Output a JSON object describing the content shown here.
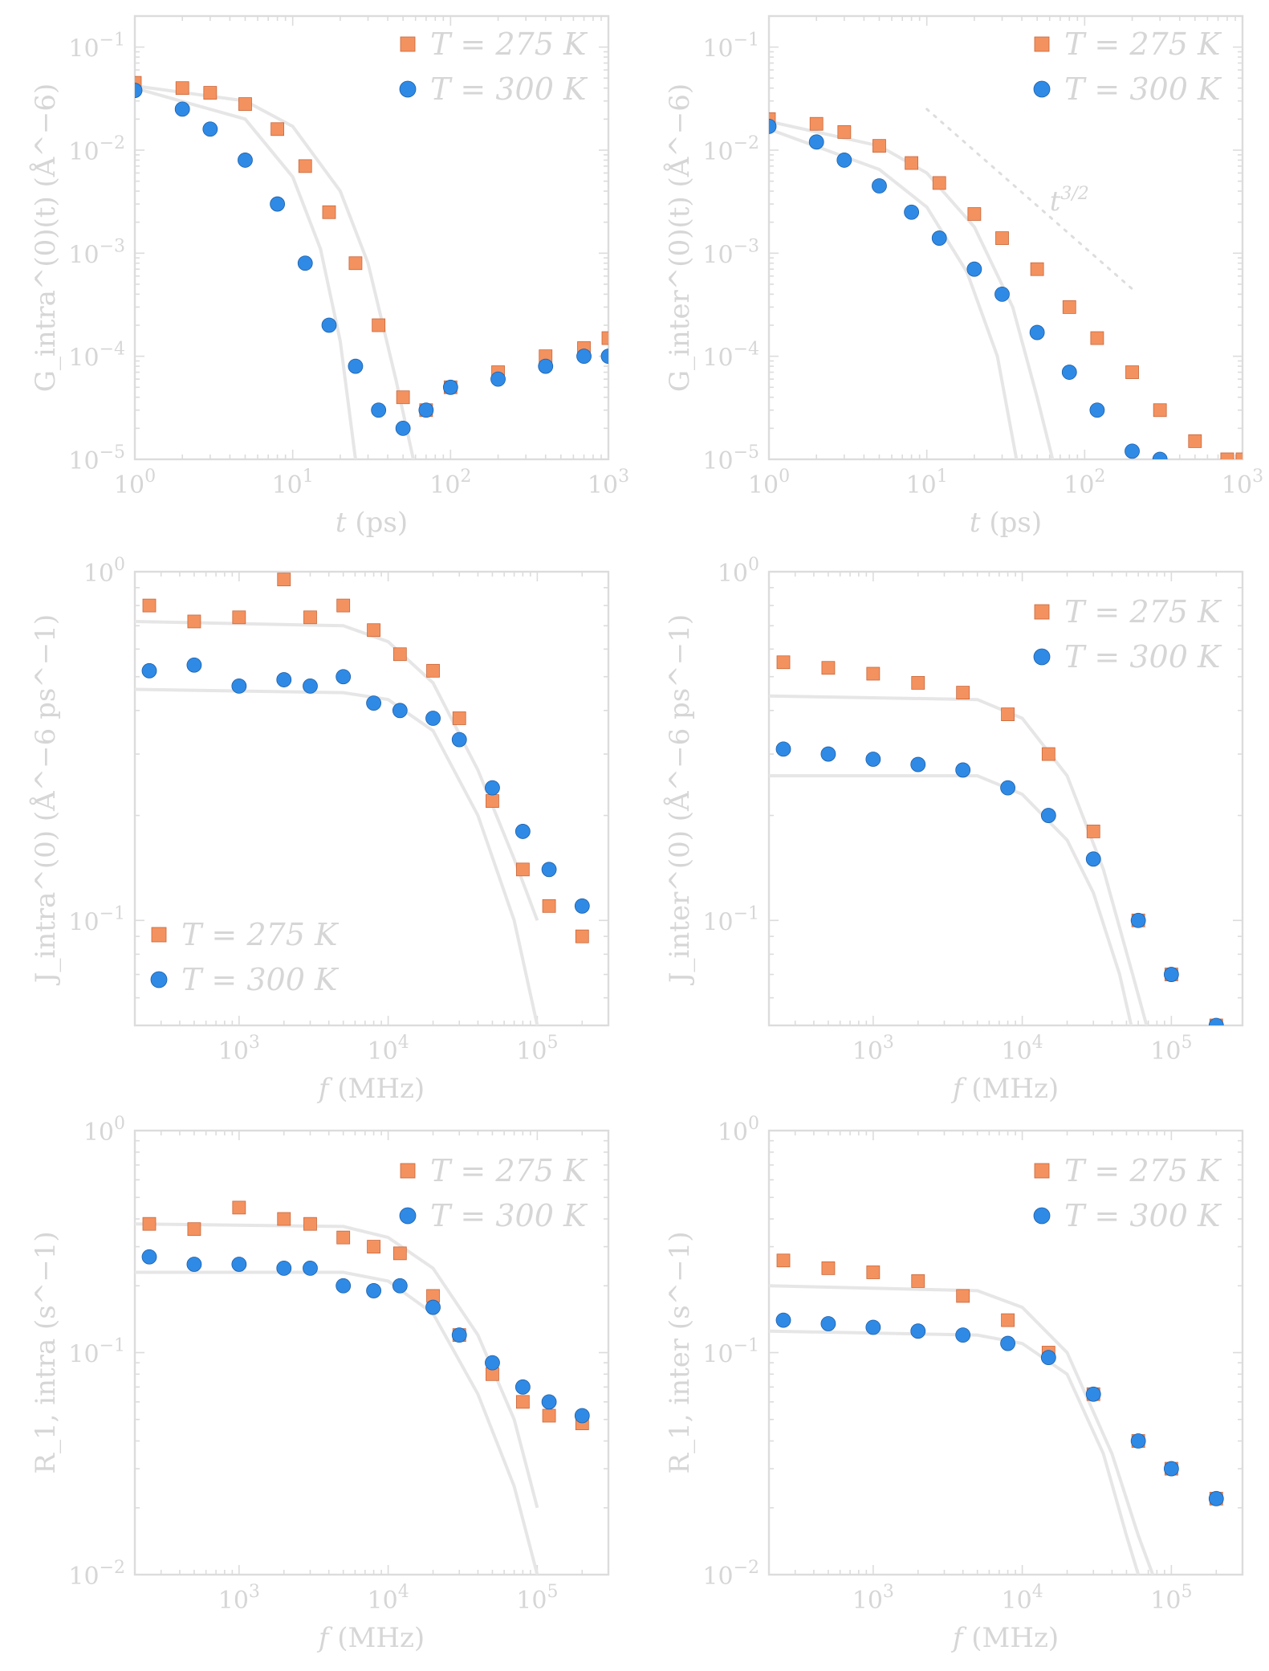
{
  "colors": {
    "series_275": "#f4925f",
    "series_300": "#2f8ae6",
    "fit": "#e6e6e6",
    "axes": "#dcdcdc",
    "text": "#d6d6d6"
  },
  "chart_data": [
    {
      "type": "scatter",
      "xlabel": "t (ps)",
      "ylabel": "G_intra^(0)(t) (Å^−6)",
      "xscale": "log",
      "yscale": "log",
      "xlim": [
        1,
        1000
      ],
      "ylim": [
        1e-05,
        0.2
      ],
      "x_tick_labels": [
        "10^0",
        "10^1",
        "10^2",
        "10^3"
      ],
      "y_tick_labels": [
        "10^−5",
        "10^−4",
        "10^−3",
        "10^−2",
        "10^−1"
      ],
      "legend_position": "top-right",
      "series": [
        {
          "name": "T = 275 K",
          "marker": "square",
          "x": [
            1,
            2,
            3,
            5,
            8,
            12,
            17,
            25,
            35,
            50,
            70,
            100,
            200,
            400,
            700,
            1000
          ],
          "y": [
            0.045,
            0.04,
            0.036,
            0.028,
            0.016,
            0.007,
            0.0025,
            0.0008,
            0.0002,
            4e-05,
            3e-05,
            5e-05,
            7e-05,
            0.0001,
            0.00012,
            0.00015
          ]
        },
        {
          "name": "T = 300 K",
          "marker": "circle",
          "x": [
            1,
            2,
            3,
            5,
            8,
            12,
            17,
            25,
            35,
            50,
            70,
            100,
            200,
            400,
            700,
            1000
          ],
          "y": [
            0.038,
            0.025,
            0.016,
            0.008,
            0.003,
            0.0008,
            0.0002,
            8e-05,
            3e-05,
            2e-05,
            3e-05,
            5e-05,
            6e-05,
            8e-05,
            0.0001,
            0.0001
          ]
        },
        {
          "name": "fit 275 K",
          "line": "solid",
          "x": [
            1,
            5,
            10,
            20,
            30,
            45,
            60
          ],
          "y": [
            0.042,
            0.03,
            0.017,
            0.004,
            0.0008,
            6e-05,
            8e-06
          ]
        },
        {
          "name": "fit 300 K",
          "line": "solid",
          "x": [
            1,
            5,
            10,
            15,
            20,
            25
          ],
          "y": [
            0.04,
            0.02,
            0.0055,
            0.0011,
            0.00014,
            1e-05
          ]
        }
      ]
    },
    {
      "type": "scatter",
      "xlabel": "t (ps)",
      "ylabel": "G_inter^(0)(t) (Å^−6)",
      "xscale": "log",
      "yscale": "log",
      "xlim": [
        1,
        1000
      ],
      "ylim": [
        1e-05,
        0.2
      ],
      "x_tick_labels": [
        "10^0",
        "10^1",
        "10^2",
        "10^3"
      ],
      "y_tick_labels": [
        "10^−5",
        "10^−4",
        "10^−3",
        "10^−2",
        "10^−1"
      ],
      "legend_position": "top-right",
      "annotations": [
        "t^3/2"
      ],
      "series": [
        {
          "name": "T = 275 K",
          "marker": "square",
          "x": [
            1,
            2,
            3,
            5,
            8,
            12,
            20,
            30,
            50,
            80,
            120,
            200,
            300,
            500,
            800,
            1000
          ],
          "y": [
            0.02,
            0.018,
            0.015,
            0.011,
            0.0075,
            0.0048,
            0.0024,
            0.0014,
            0.0007,
            0.0003,
            0.00015,
            7e-05,
            3e-05,
            1.5e-05,
            1e-05,
            1e-05
          ]
        },
        {
          "name": "T = 300 K",
          "marker": "circle",
          "x": [
            1,
            2,
            3,
            5,
            8,
            12,
            20,
            30,
            50,
            80,
            120,
            200,
            300
          ],
          "y": [
            0.017,
            0.012,
            0.008,
            0.0045,
            0.0025,
            0.0014,
            0.0007,
            0.0004,
            0.00017,
            7e-05,
            3e-05,
            1.2e-05,
            1e-05
          ]
        },
        {
          "name": "fit 275 K",
          "line": "solid",
          "x": [
            1,
            5,
            10,
            20,
            35,
            50,
            65
          ],
          "y": [
            0.019,
            0.011,
            0.006,
            0.0018,
            0.0003,
            4e-05,
            8e-06
          ]
        },
        {
          "name": "fit 300 K",
          "line": "solid",
          "x": [
            1,
            5,
            10,
            18,
            28,
            38
          ],
          "y": [
            0.016,
            0.0065,
            0.0028,
            0.00065,
            0.0001,
            8e-06
          ]
        },
        {
          "name": "t^3/2",
          "line": "dotted",
          "x": [
            10,
            200
          ],
          "y": [
            0.025,
            0.00045
          ]
        }
      ]
    },
    {
      "type": "scatter",
      "xlabel": "f (MHz)",
      "ylabel": "J_intra^(0) (Å^−6 ps^−1)",
      "xscale": "log",
      "yscale": "log",
      "xlim": [
        200,
        300000
      ],
      "ylim": [
        0.05,
        1
      ],
      "x_tick_labels": [
        "10^3",
        "10^4",
        "10^5"
      ],
      "y_tick_labels": [
        "10^−1",
        "10^0"
      ],
      "legend_position": "bottom-left",
      "series": [
        {
          "name": "T = 275 K",
          "marker": "square",
          "x": [
            250,
            500,
            1000,
            2000,
            3000,
            5000,
            8000,
            12000,
            20000,
            30000,
            50000,
            80000,
            120000,
            200000
          ],
          "y": [
            0.8,
            0.72,
            0.74,
            0.95,
            0.74,
            0.8,
            0.68,
            0.58,
            0.52,
            0.38,
            0.22,
            0.14,
            0.11,
            0.09
          ]
        },
        {
          "name": "T = 300 K",
          "marker": "circle",
          "x": [
            250,
            500,
            1000,
            2000,
            3000,
            5000,
            8000,
            12000,
            20000,
            30000,
            50000,
            80000,
            120000,
            200000
          ],
          "y": [
            0.52,
            0.54,
            0.47,
            0.49,
            0.47,
            0.5,
            0.42,
            0.4,
            0.38,
            0.33,
            0.24,
            0.18,
            0.14,
            0.11
          ]
        },
        {
          "name": "fit 275 K",
          "line": "solid",
          "x": [
            200,
            5000,
            10000,
            20000,
            40000,
            70000,
            100000
          ],
          "y": [
            0.72,
            0.7,
            0.63,
            0.48,
            0.27,
            0.15,
            0.1
          ]
        },
        {
          "name": "fit 300 K",
          "line": "solid",
          "x": [
            200,
            5000,
            10000,
            20000,
            40000,
            70000,
            100000
          ],
          "y": [
            0.46,
            0.45,
            0.43,
            0.35,
            0.2,
            0.1,
            0.05
          ]
        }
      ]
    },
    {
      "type": "scatter",
      "xlabel": "f (MHz)",
      "ylabel": "J_inter^(0) (Å^−6 ps^−1)",
      "xscale": "log",
      "yscale": "log",
      "xlim": [
        200,
        300000
      ],
      "ylim": [
        0.05,
        1
      ],
      "x_tick_labels": [
        "10^3",
        "10^4",
        "10^5"
      ],
      "y_tick_labels": [
        "10^−1",
        "10^0"
      ],
      "legend_position": "top-right",
      "series": [
        {
          "name": "T = 275 K",
          "marker": "square",
          "x": [
            250,
            500,
            1000,
            2000,
            4000,
            8000,
            15000,
            30000,
            60000,
            100000,
            200000
          ],
          "y": [
            0.55,
            0.53,
            0.51,
            0.48,
            0.45,
            0.39,
            0.3,
            0.18,
            0.1,
            0.07,
            0.05
          ]
        },
        {
          "name": "T = 300 K",
          "marker": "circle",
          "x": [
            250,
            500,
            1000,
            2000,
            4000,
            8000,
            15000,
            30000,
            60000,
            100000,
            200000
          ],
          "y": [
            0.31,
            0.3,
            0.29,
            0.28,
            0.27,
            0.24,
            0.2,
            0.15,
            0.1,
            0.07,
            0.05
          ]
        },
        {
          "name": "fit 275 K",
          "line": "solid",
          "x": [
            200,
            5000,
            10000,
            20000,
            35000,
            55000,
            70000
          ],
          "y": [
            0.44,
            0.43,
            0.38,
            0.26,
            0.14,
            0.07,
            0.048
          ]
        },
        {
          "name": "fit 300 K",
          "line": "solid",
          "x": [
            200,
            5000,
            10000,
            20000,
            30000,
            45000,
            55000
          ],
          "y": [
            0.26,
            0.26,
            0.23,
            0.17,
            0.12,
            0.07,
            0.048
          ]
        }
      ]
    },
    {
      "type": "scatter",
      "xlabel": "f (MHz)",
      "ylabel": "R_1, intra (s^−1)",
      "xscale": "log",
      "yscale": "log",
      "xlim": [
        200,
        300000
      ],
      "ylim": [
        0.01,
        1
      ],
      "x_tick_labels": [
        "10^3",
        "10^4",
        "10^5"
      ],
      "y_tick_labels": [
        "10^−2",
        "10^−1",
        "10^0"
      ],
      "legend_position": "top-right",
      "series": [
        {
          "name": "T = 275 K",
          "marker": "square",
          "x": [
            250,
            500,
            1000,
            2000,
            3000,
            5000,
            8000,
            12000,
            20000,
            30000,
            50000,
            80000,
            120000,
            200000
          ],
          "y": [
            0.38,
            0.36,
            0.45,
            0.4,
            0.38,
            0.33,
            0.3,
            0.28,
            0.18,
            0.12,
            0.08,
            0.06,
            0.052,
            0.048
          ]
        },
        {
          "name": "T = 300 K",
          "marker": "circle",
          "x": [
            250,
            500,
            1000,
            2000,
            3000,
            5000,
            8000,
            12000,
            20000,
            30000,
            50000,
            80000,
            120000,
            200000
          ],
          "y": [
            0.27,
            0.25,
            0.25,
            0.24,
            0.24,
            0.2,
            0.19,
            0.2,
            0.16,
            0.12,
            0.09,
            0.07,
            0.06,
            0.052
          ]
        },
        {
          "name": "fit 275 K",
          "line": "solid",
          "x": [
            200,
            5000,
            10000,
            20000,
            40000,
            70000,
            100000
          ],
          "y": [
            0.38,
            0.37,
            0.33,
            0.24,
            0.12,
            0.05,
            0.02
          ]
        },
        {
          "name": "fit 300 K",
          "line": "solid",
          "x": [
            200,
            5000,
            10000,
            20000,
            40000,
            70000,
            100000
          ],
          "y": [
            0.23,
            0.23,
            0.21,
            0.15,
            0.065,
            0.025,
            0.01
          ]
        }
      ]
    },
    {
      "type": "scatter",
      "xlabel": "f (MHz)",
      "ylabel": "R_1, inter (s^−1)",
      "xscale": "log",
      "yscale": "log",
      "xlim": [
        200,
        300000
      ],
      "ylim": [
        0.01,
        1
      ],
      "x_tick_labels": [
        "10^3",
        "10^4",
        "10^5"
      ],
      "y_tick_labels": [
        "10^−2",
        "10^−1",
        "10^0"
      ],
      "legend_position": "top-right",
      "series": [
        {
          "name": "T = 275 K",
          "marker": "square",
          "x": [
            250,
            500,
            1000,
            2000,
            4000,
            8000,
            15000,
            30000,
            60000,
            100000,
            200000
          ],
          "y": [
            0.26,
            0.24,
            0.23,
            0.21,
            0.18,
            0.14,
            0.1,
            0.065,
            0.04,
            0.03,
            0.022
          ]
        },
        {
          "name": "T = 300 K",
          "marker": "circle",
          "x": [
            250,
            500,
            1000,
            2000,
            4000,
            8000,
            15000,
            30000,
            60000,
            100000,
            200000
          ],
          "y": [
            0.14,
            0.135,
            0.13,
            0.125,
            0.12,
            0.11,
            0.095,
            0.065,
            0.04,
            0.03,
            0.022
          ]
        },
        {
          "name": "fit 275 K",
          "line": "solid",
          "x": [
            200,
            5000,
            10000,
            20000,
            40000,
            60000,
            75000
          ],
          "y": [
            0.2,
            0.19,
            0.16,
            0.1,
            0.035,
            0.015,
            0.01
          ]
        },
        {
          "name": "fit 300 K",
          "line": "solid",
          "x": [
            200,
            5000,
            10000,
            20000,
            35000,
            50000,
            60000
          ],
          "y": [
            0.125,
            0.12,
            0.11,
            0.08,
            0.035,
            0.015,
            0.01
          ]
        }
      ]
    }
  ]
}
